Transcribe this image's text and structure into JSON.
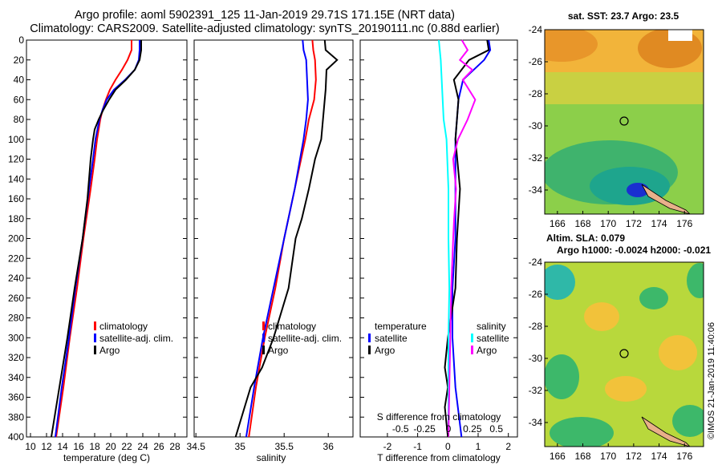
{
  "title_line1": "Argo profile: aoml 5902391_125 11-Jan-2019 29.71S 171.15E (NRT data)",
  "title_line2": "Climatology: CARS2009. Satellite-adjusted climatology: synTS_20190111.nc (0.88d earlier)",
  "watermark": "©IMOS 21-Jan-2019 11:40:06",
  "colors": {
    "climatology": "#ff0000",
    "satellite": "#0000ff",
    "argo": "#000000",
    "sat_salinity": "#00ffff",
    "argo_salinity": "#ff00ff"
  },
  "chart_data": [
    {
      "type": "line",
      "id": "temp",
      "xlabel": "temperature (deg C)",
      "ylabel": "",
      "xlim": [
        9.5,
        29.5
      ],
      "ylim": [
        400,
        0
      ],
      "xticks": [
        "10",
        "12",
        "14",
        "16",
        "18",
        "20",
        "22",
        "24",
        "26",
        "28"
      ],
      "yticks": [
        "0",
        "20",
        "40",
        "60",
        "80",
        "100",
        "120",
        "140",
        "160",
        "180",
        "200",
        "220",
        "240",
        "260",
        "280",
        "300",
        "320",
        "340",
        "360",
        "380",
        "400"
      ],
      "legend": [
        "climatology",
        "satellite-adj. clim.",
        "Argo"
      ],
      "series": [
        {
          "name": "climatology",
          "depth": [
            0,
            10,
            20,
            30,
            40,
            50,
            60,
            70,
            80,
            100,
            120,
            150,
            200,
            250,
            300,
            350,
            400
          ],
          "values": [
            22.6,
            22.6,
            22.1,
            21.4,
            20.6,
            19.9,
            19.4,
            19.0,
            18.7,
            18.3,
            18.0,
            17.5,
            16.6,
            15.8,
            14.9,
            14.1,
            13.2
          ]
        },
        {
          "name": "satellite-adj. clim.",
          "depth": [
            0,
            10,
            20,
            30,
            40,
            50,
            60,
            70,
            80,
            100,
            120,
            150,
            200,
            250,
            300,
            350,
            400
          ],
          "values": [
            23.6,
            23.6,
            23.5,
            23.0,
            21.8,
            20.4,
            19.5,
            19.0,
            18.6,
            18.1,
            17.8,
            17.3,
            16.5,
            15.6,
            14.8,
            13.9,
            13.1
          ]
        },
        {
          "name": "Argo",
          "depth": [
            0,
            10,
            20,
            30,
            40,
            50,
            60,
            70,
            80,
            90,
            100,
            120,
            140,
            160,
            180,
            200,
            250,
            300,
            350,
            400
          ],
          "values": [
            23.8,
            23.8,
            23.6,
            23.0,
            21.9,
            20.6,
            19.8,
            19.1,
            18.5,
            18.0,
            17.8,
            17.5,
            17.3,
            17.1,
            16.8,
            16.5,
            15.5,
            14.6,
            13.6,
            12.6
          ]
        }
      ]
    },
    {
      "type": "line",
      "id": "sal",
      "xlabel": "salinity",
      "ylabel": "",
      "xlim": [
        34.48,
        36.28
      ],
      "ylim": [
        400,
        0
      ],
      "xticks": [
        "34.5",
        "35",
        "35.5",
        "36"
      ],
      "legend": [
        "climatology",
        "satellite-adj. clim.",
        "Argo"
      ],
      "series": [
        {
          "name": "climatology",
          "depth": [
            0,
            10,
            20,
            40,
            60,
            80,
            100,
            150,
            200,
            250,
            300,
            350,
            400
          ],
          "values": [
            35.82,
            35.83,
            35.85,
            35.86,
            35.84,
            35.78,
            35.74,
            35.62,
            35.5,
            35.4,
            35.28,
            35.18,
            35.1
          ]
        },
        {
          "name": "satellite-adj. clim.",
          "depth": [
            0,
            10,
            20,
            40,
            60,
            80,
            100,
            150,
            200,
            250,
            300,
            350,
            400
          ],
          "values": [
            35.71,
            35.72,
            35.75,
            35.76,
            35.77,
            35.75,
            35.72,
            35.62,
            35.5,
            35.38,
            35.26,
            35.16,
            35.07
          ]
        },
        {
          "name": "Argo",
          "depth": [
            0,
            10,
            20,
            30,
            50,
            80,
            100,
            120,
            150,
            180,
            200,
            250,
            300,
            330,
            350,
            400
          ],
          "values": [
            35.96,
            35.97,
            36.1,
            35.98,
            35.97,
            35.94,
            35.92,
            35.85,
            35.78,
            35.7,
            35.63,
            35.55,
            35.38,
            35.25,
            35.12,
            34.95
          ]
        }
      ]
    },
    {
      "type": "line",
      "id": "diff",
      "xlabel": "T difference from climatology",
      "top_xlabel": "S difference from climatology",
      "xlim": [
        -2.9,
        2.3
      ],
      "ylim": [
        400,
        0
      ],
      "xticks": [
        "-2",
        "-1",
        "0",
        "1",
        "2"
      ],
      "top_xticks": [
        "-0.5",
        "-0.25",
        "0",
        "0.25",
        "0.5"
      ],
      "legend_left_title": "temperature",
      "legend_right_title": "salinity",
      "legend_left": [
        "satellite",
        "Argo"
      ],
      "legend_right": [
        "satellite",
        "Argo"
      ],
      "series": [
        {
          "name": "T satellite",
          "depth": [
            0,
            10,
            20,
            40,
            60,
            80,
            100,
            150,
            200,
            250,
            300,
            350,
            400
          ],
          "values": [
            1.35,
            1.4,
            1.2,
            0.5,
            0.35,
            0.3,
            0.25,
            0.25,
            0.25,
            0.15,
            0.15,
            0.25,
            0.45
          ]
        },
        {
          "name": "T Argo",
          "depth": [
            0,
            10,
            20,
            40,
            60,
            80,
            100,
            150,
            200,
            250,
            300,
            330,
            350,
            370,
            400
          ],
          "values": [
            1.3,
            1.35,
            0.7,
            0.2,
            0.35,
            0.3,
            0.25,
            0.4,
            0.3,
            0.25,
            0.0,
            -0.1,
            0.0,
            -0.1,
            0.0
          ]
        },
        {
          "name": "S satellite",
          "depth": [
            0,
            10,
            20,
            40,
            60,
            80,
            100,
            150,
            200,
            250,
            300,
            350,
            400
          ],
          "values": [
            -0.1,
            -0.09,
            -0.08,
            -0.07,
            -0.06,
            -0.05,
            -0.02,
            0.0,
            0.0,
            0.01,
            0.0,
            0.0,
            0.0
          ]
        },
        {
          "name": "S Argo",
          "depth": [
            0,
            10,
            20,
            30,
            40,
            60,
            80,
            100,
            120,
            150,
            180,
            200,
            250,
            300,
            350,
            400
          ],
          "values": [
            0.14,
            0.2,
            0.12,
            0.25,
            0.15,
            0.28,
            0.2,
            0.1,
            0.05,
            0.08,
            0.06,
            0.05,
            0.03,
            0.02,
            0.01,
            0.0
          ]
        }
      ]
    },
    {
      "type": "heatmap",
      "id": "sst_map",
      "title": "sat. SST: 23.7 Argo: 23.5",
      "xticks": [
        "166",
        "168",
        "170",
        "172",
        "174",
        "176"
      ],
      "yticks": [
        "-24",
        "-26",
        "-28",
        "-30",
        "-32",
        "-34"
      ]
    },
    {
      "type": "heatmap",
      "id": "sla_map",
      "title_line1": "Altim. SLA: 0.079",
      "title_line2": "Argo h1000: -0.0024 h2000: -0.021",
      "xticks": [
        "166",
        "168",
        "170",
        "172",
        "174",
        "176"
      ],
      "yticks": [
        "-24",
        "-26",
        "-28",
        "-30",
        "-32",
        "-34"
      ]
    }
  ]
}
